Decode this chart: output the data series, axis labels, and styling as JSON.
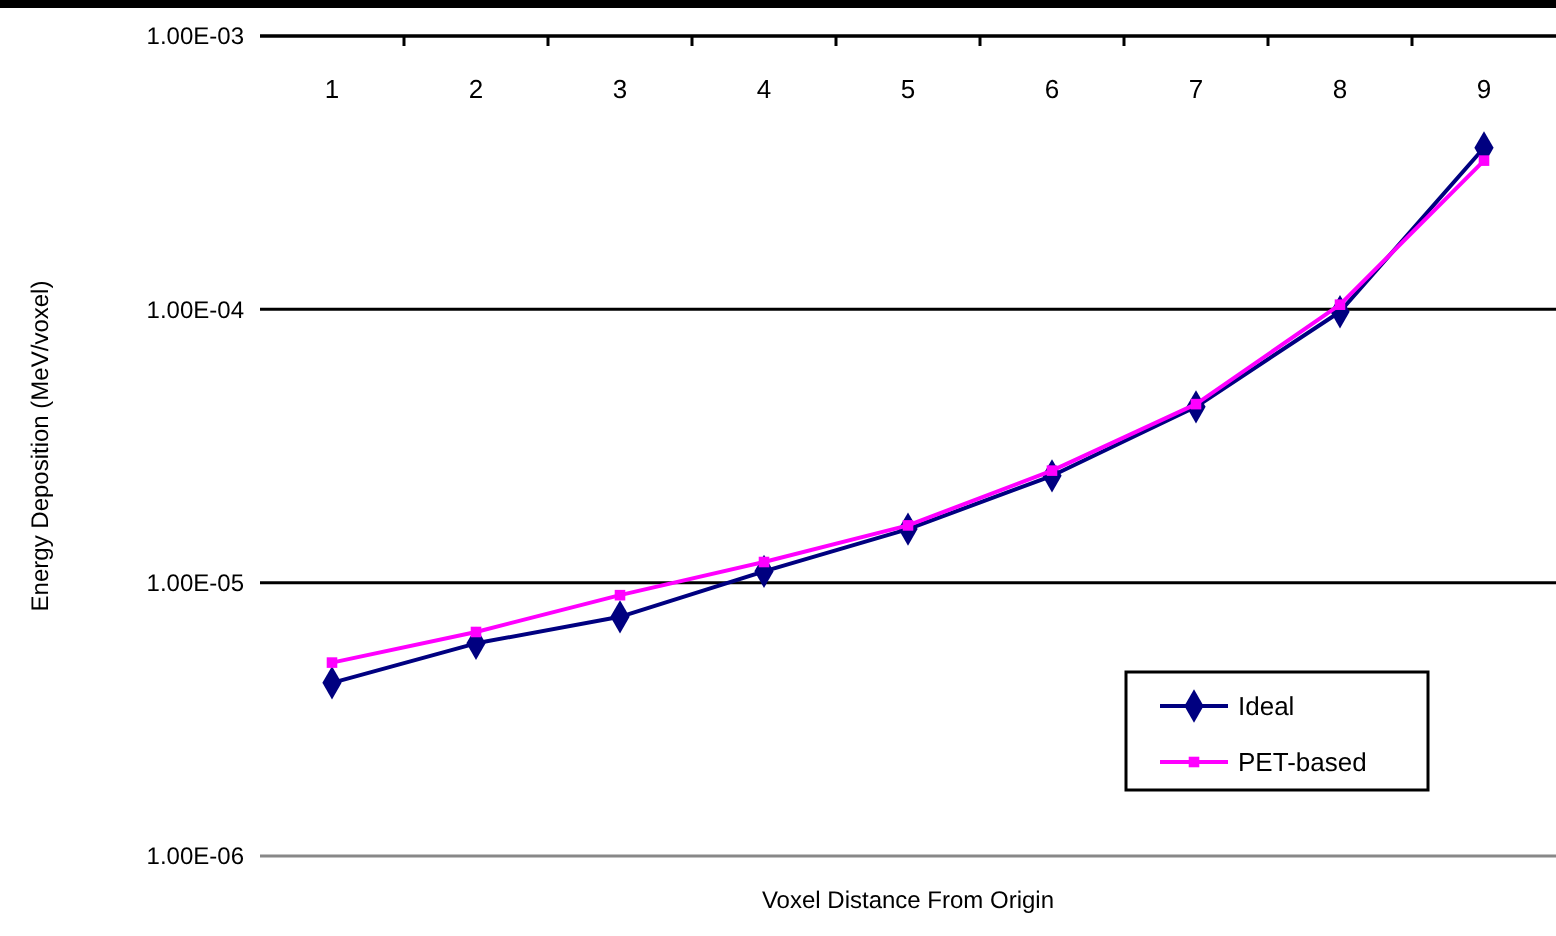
{
  "chart_data": {
    "type": "line",
    "xlabel": "Voxel Distance From Origin",
    "ylabel": "Energy Deposition (MeV/voxel)",
    "categories": [
      "1",
      "2",
      "3",
      "4",
      "5",
      "6",
      "7",
      "8",
      "9"
    ],
    "log": "y",
    "ylim": [
      1e-06,
      0.001
    ],
    "yticks": [
      {
        "value": 1e-06,
        "label": "1.00E-06"
      },
      {
        "value": 1e-05,
        "label": "1.00E-05"
      },
      {
        "value": 0.0001,
        "label": "1.00E-04"
      },
      {
        "value": 0.001,
        "label": "1.00E-03"
      }
    ],
    "grid": "y",
    "legend": "bottom right",
    "line_style": "solid",
    "series": [
      {
        "name": "Ideal",
        "color": "#000080",
        "marker": "diamond",
        "values": [
          4.3e-06,
          6e-06,
          7.5e-06,
          1.1e-05,
          1.57e-05,
          2.46e-05,
          4.4e-05,
          9.8e-05,
          0.00039
        ]
      },
      {
        "name": "PET-based",
        "color": "#ff00ff",
        "marker": "square",
        "values": [
          5.1e-06,
          6.6e-06,
          9e-06,
          1.19e-05,
          1.62e-05,
          2.57e-05,
          4.5e-05,
          0.000104,
          0.00035
        ]
      }
    ]
  }
}
